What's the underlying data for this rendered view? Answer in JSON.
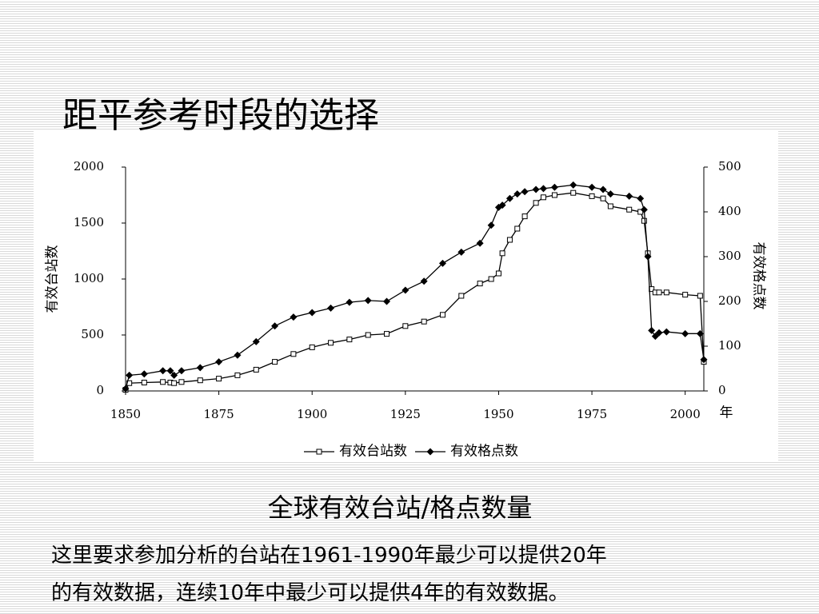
{
  "slide": {
    "title": "距平参考时段的选择",
    "caption": "全球有效台站/格点数量",
    "notes": [
      "这里要求参加分析的台站在1961-1990年最少可以提供20年",
      "的有效数据，连续10年中最少可以提供4年的有效数据。"
    ]
  },
  "chart_data": {
    "type": "line",
    "x_label": "年",
    "y_label": "有效台站数",
    "y2_label": "有效格点数",
    "x": [
      1850,
      1851,
      1855,
      1860,
      1862,
      1863,
      1865,
      1870,
      1875,
      1880,
      1885,
      1890,
      1895,
      1900,
      1905,
      1910,
      1915,
      1920,
      1925,
      1930,
      1935,
      1940,
      1945,
      1948,
      1950,
      1951,
      1953,
      1955,
      1957,
      1960,
      1962,
      1965,
      1970,
      1975,
      1978,
      1980,
      1985,
      1988,
      1989,
      1990,
      1991,
      1992,
      1993,
      1995,
      2000,
      2004,
      2005
    ],
    "xlim": [
      1850,
      2005
    ],
    "xticks": [
      1850,
      1875,
      1900,
      1925,
      1950,
      1975,
      2000
    ],
    "ylim": [
      0,
      2000
    ],
    "yticks": [
      0,
      500,
      1000,
      1500,
      2000
    ],
    "y2lim": [
      0,
      500
    ],
    "y2ticks": [
      0,
      100,
      200,
      300,
      400,
      500
    ],
    "legend": "bottom",
    "series": [
      {
        "name": "有效台站数",
        "color": "#000000",
        "marker": "square-open",
        "values": [
          10,
          70,
          75,
          80,
          75,
          70,
          80,
          95,
          110,
          140,
          190,
          260,
          330,
          390,
          430,
          460,
          500,
          510,
          580,
          620,
          680,
          850,
          960,
          1000,
          1050,
          1230,
          1350,
          1450,
          1560,
          1680,
          1730,
          1750,
          1770,
          1740,
          1720,
          1650,
          1620,
          1600,
          1520,
          1230,
          910,
          880,
          880,
          880,
          860,
          850,
          260
        ]
      },
      {
        "name": "有效格点数",
        "color": "#000000",
        "marker": "diamond",
        "axis": "y2",
        "values": [
          5,
          35,
          38,
          45,
          45,
          35,
          45,
          52,
          65,
          80,
          110,
          145,
          165,
          175,
          185,
          198,
          202,
          200,
          225,
          245,
          285,
          310,
          330,
          370,
          410,
          415,
          430,
          440,
          445,
          450,
          452,
          455,
          460,
          455,
          450,
          440,
          435,
          430,
          405,
          300,
          135,
          122,
          130,
          132,
          128,
          128,
          70
        ]
      }
    ]
  }
}
